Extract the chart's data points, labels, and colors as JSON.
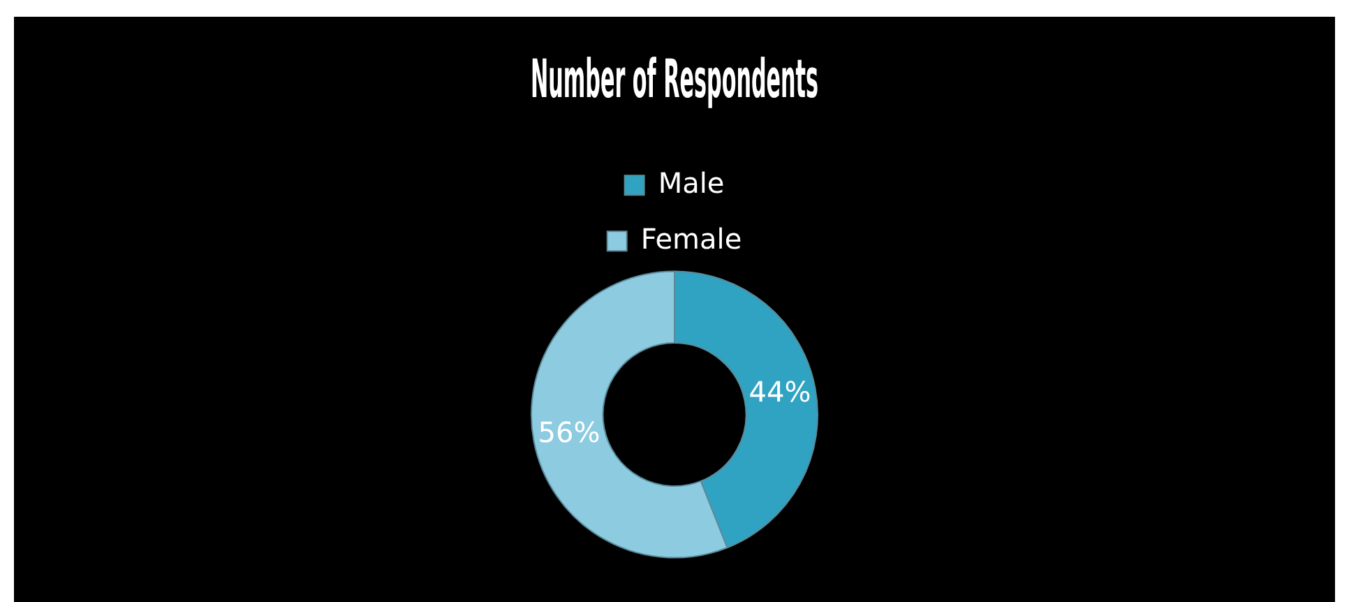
{
  "chart_data": {
    "type": "donut",
    "title": "Number of Respondents",
    "categories": [
      "Male",
      "Female"
    ],
    "values": [
      44,
      56
    ],
    "colors": [
      "#31a3c2",
      "#8ccbe0"
    ],
    "value_labels": [
      "44%",
      "56%"
    ],
    "legend": "top"
  }
}
